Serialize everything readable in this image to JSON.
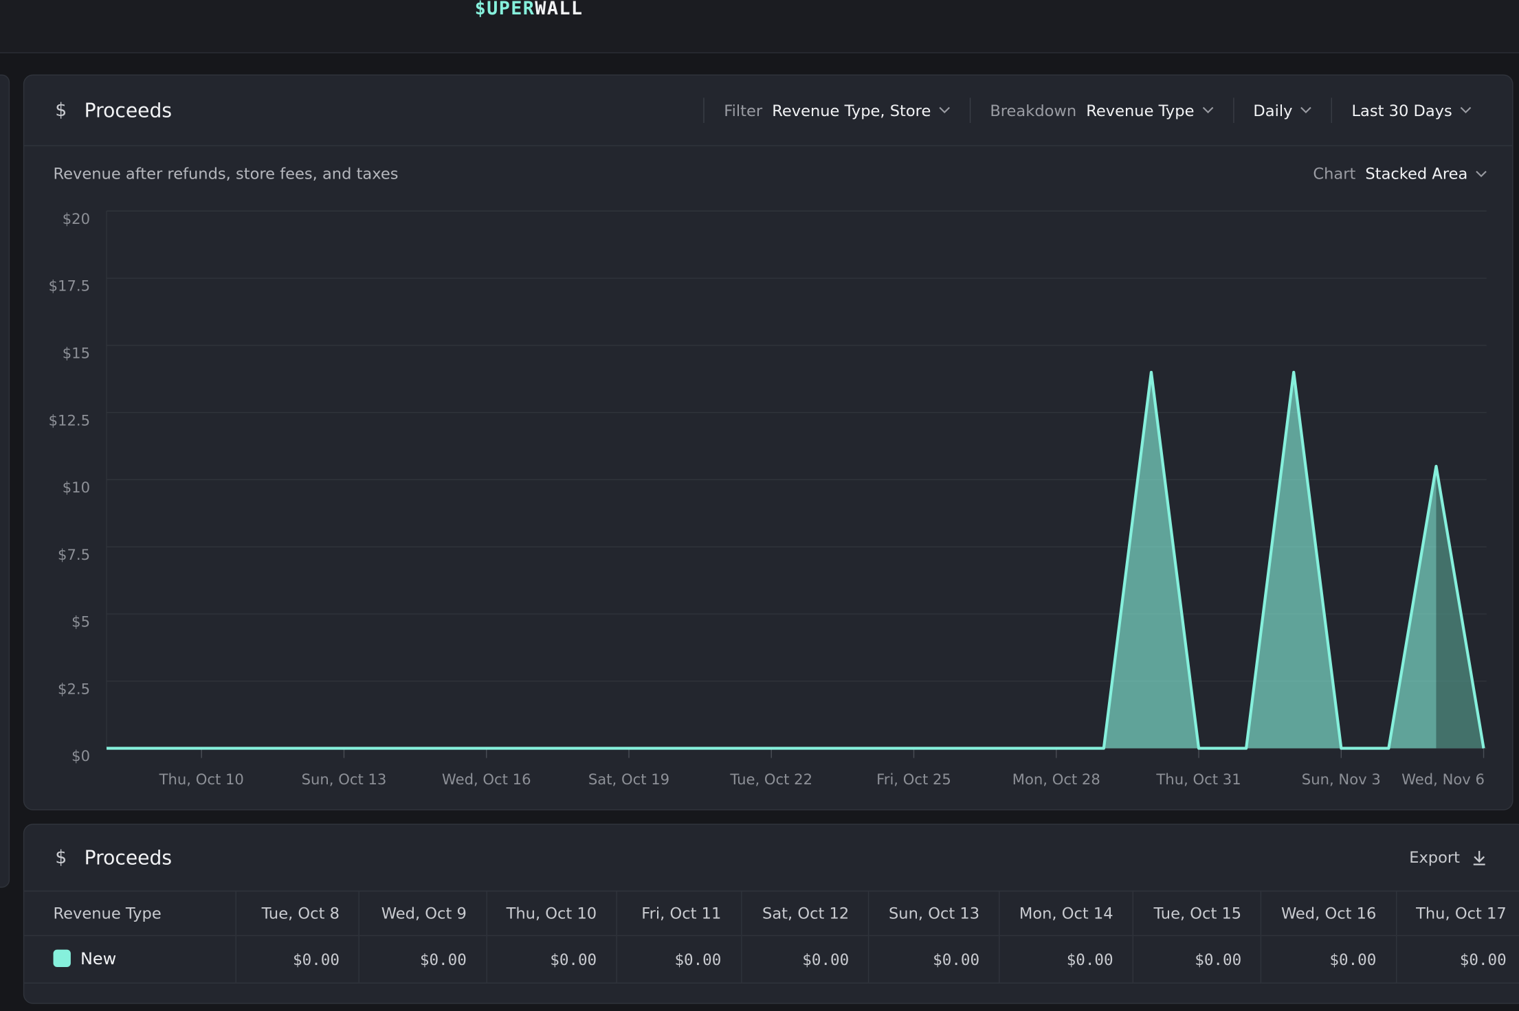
{
  "header": {
    "logo_left": "$UPER",
    "logo_right": "WALL"
  },
  "panel": {
    "icon": "$",
    "title": "Proceeds",
    "filters": [
      {
        "label": "Filter",
        "value": "Revenue Type, Store"
      },
      {
        "label": "Breakdown",
        "value": "Revenue Type"
      },
      {
        "value": "Daily"
      },
      {
        "value": "Last 30 Days"
      }
    ],
    "subtitle": "Revenue after refunds, store fees, and taxes",
    "chart_select": {
      "label": "Chart",
      "value": "Stacked Area"
    }
  },
  "chart_data": {
    "type": "area",
    "color": "#86f0dc",
    "grid": true,
    "categories": [
      null,
      null,
      "Thu, Oct 10",
      null,
      null,
      "Sun, Oct 13",
      null,
      null,
      "Wed, Oct 16",
      null,
      null,
      "Sat, Oct 19",
      null,
      null,
      "Tue, Oct 22",
      null,
      null,
      "Fri, Oct 25",
      null,
      null,
      "Mon, Oct 28",
      null,
      null,
      "Thu, Oct 31",
      null,
      null,
      "Sun, Nov 3",
      null,
      null,
      "Wed, Nov 6"
    ],
    "values": [
      0,
      0,
      0,
      0,
      0,
      0,
      0,
      0,
      0,
      0,
      0,
      0,
      0,
      0,
      0,
      0,
      0,
      0,
      0,
      0,
      0,
      0,
      14,
      0,
      0,
      14,
      0,
      0,
      10.5,
      0
    ],
    "ylim": [
      0,
      20
    ],
    "yticks": [
      {
        "value": 0,
        "label": "$0"
      },
      {
        "value": 2.5,
        "label": "$2.5"
      },
      {
        "value": 5,
        "label": "$5"
      },
      {
        "value": 7.5,
        "label": "$7.5"
      },
      {
        "value": 10,
        "label": "$10"
      },
      {
        "value": 12.5,
        "label": "$12.5"
      },
      {
        "value": 15,
        "label": "$15"
      },
      {
        "value": 17.5,
        "label": "$17.5"
      },
      {
        "value": 20,
        "label": "$20"
      }
    ]
  },
  "table_panel": {
    "icon": "$",
    "title": "Proceeds",
    "export": "Export"
  },
  "table": {
    "header": [
      "Revenue Type",
      "Tue, Oct 8",
      "Wed, Oct 9",
      "Thu, Oct 10",
      "Fri, Oct 11",
      "Sat, Oct 12",
      "Sun, Oct 13",
      "Mon, Oct 14",
      "Tue, Oct 15",
      "Wed, Oct 16",
      "Thu, Oct 17"
    ],
    "rows": [
      [
        "New",
        "$0.00",
        "$0.00",
        "$0.00",
        "$0.00",
        "$0.00",
        "$0.00",
        "$0.00",
        "$0.00",
        "$0.00",
        "$0.00"
      ]
    ]
  }
}
